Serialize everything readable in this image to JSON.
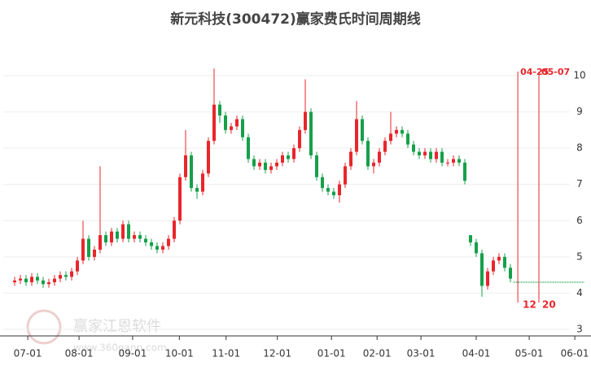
{
  "chart_data": {
    "type": "candlestick",
    "title": "新元科技(300472)赢家费氏时间周期线",
    "watermark": {
      "brand": "赢家江恩软件",
      "url": "www.360gann.com"
    },
    "up_color": "#e8262b",
    "down_color": "#16a04a",
    "xlim": [
      -2,
      100
    ],
    "xticks": [
      {
        "value": 2.3,
        "label": "07-01"
      },
      {
        "value": 11.3,
        "label": "08-01"
      },
      {
        "value": 20.7,
        "label": "09-01"
      },
      {
        "value": 28.9,
        "label": "10-01"
      },
      {
        "value": 37.1,
        "label": "11-01"
      },
      {
        "value": 46.1,
        "label": "12-01"
      },
      {
        "value": 55.6,
        "label": "01-01"
      },
      {
        "value": 63.6,
        "label": "02-01"
      },
      {
        "value": 71.3,
        "label": "03-01"
      },
      {
        "value": 81,
        "label": "04-01"
      },
      {
        "value": 90.3,
        "label": "05-01"
      },
      {
        "value": 98.3,
        "label": "06-01"
      }
    ],
    "ylim": [
      3,
      10
    ],
    "yticks": [
      3,
      4,
      5,
      6,
      7,
      8,
      9,
      10
    ],
    "grid": true,
    "open": [
      4.3,
      4.35,
      4.4,
      4.3,
      4.45,
      4.35,
      4.25,
      4.3,
      4.4,
      4.5,
      4.45,
      4.6,
      4.9,
      5.5,
      5.0,
      5.2,
      5.6,
      5.4,
      5.7,
      5.5,
      5.9,
      5.5,
      5.6,
      5.5,
      5.4,
      5.3,
      5.2,
      5.3,
      5.5,
      6.0,
      7.2,
      7.8,
      6.9,
      6.8,
      7.3,
      8.2,
      9.2,
      8.9,
      8.5,
      8.6,
      8.8,
      8.3,
      7.7,
      7.5,
      7.6,
      7.4,
      7.5,
      7.6,
      7.8,
      7.7,
      8.0,
      8.5,
      9.0,
      7.8,
      7.2,
      6.9,
      6.8,
      6.7,
      7.0,
      7.5,
      7.9,
      8.8,
      8.2,
      7.5,
      7.6,
      7.9,
      8.2,
      8.4,
      8.5,
      8.4,
      8.1,
      7.9,
      7.8,
      7.9,
      7.7,
      7.9,
      7.6,
      7.6,
      7.7,
      7.6,
      5.6,
      5.4,
      5.1,
      4.2,
      4.6,
      4.9,
      5.0,
      4.7
    ],
    "high": [
      4.45,
      4.5,
      4.5,
      4.55,
      4.55,
      4.45,
      4.4,
      4.5,
      4.6,
      4.6,
      4.7,
      5.0,
      6.0,
      5.6,
      5.3,
      7.5,
      5.7,
      5.8,
      5.8,
      6.0,
      6.0,
      5.7,
      5.7,
      5.6,
      5.5,
      5.4,
      5.4,
      5.6,
      6.1,
      7.3,
      8.5,
      7.9,
      7.0,
      7.4,
      8.3,
      10.2,
      9.3,
      9.0,
      8.7,
      8.9,
      8.9,
      8.4,
      7.8,
      7.7,
      7.7,
      7.6,
      7.7,
      7.9,
      7.9,
      8.1,
      8.6,
      9.9,
      9.1,
      7.9,
      7.3,
      7.0,
      6.9,
      7.1,
      7.6,
      8.0,
      9.3,
      8.9,
      8.3,
      7.7,
      8.0,
      8.3,
      9.0,
      8.6,
      8.6,
      8.5,
      8.2,
      8.0,
      8.0,
      8.0,
      8.0,
      8.0,
      7.7,
      7.8,
      7.8,
      7.7,
      5.6,
      5.5,
      5.2,
      4.7,
      5.0,
      5.1,
      5.1,
      4.8
    ],
    "low": [
      4.2,
      4.25,
      4.2,
      4.2,
      4.25,
      4.15,
      4.15,
      4.2,
      4.3,
      4.35,
      4.35,
      4.5,
      4.8,
      4.9,
      4.9,
      5.1,
      5.3,
      5.3,
      5.4,
      5.4,
      5.4,
      5.4,
      5.4,
      5.3,
      5.2,
      5.1,
      5.1,
      5.2,
      5.4,
      5.9,
      7.1,
      6.8,
      6.6,
      6.7,
      7.2,
      8.1,
      8.7,
      8.4,
      8.4,
      8.5,
      8.2,
      7.6,
      7.4,
      7.4,
      7.3,
      7.3,
      7.4,
      7.5,
      7.6,
      7.6,
      7.9,
      8.4,
      7.7,
      7.1,
      6.8,
      6.7,
      6.6,
      6.5,
      6.9,
      7.4,
      7.8,
      8.1,
      7.4,
      7.3,
      7.5,
      7.8,
      8.1,
      8.3,
      8.3,
      8.0,
      7.8,
      7.7,
      7.7,
      7.6,
      7.6,
      7.5,
      7.5,
      7.5,
      7.5,
      7.0,
      5.3,
      5.0,
      3.9,
      4.1,
      4.5,
      4.8,
      4.6,
      4.3
    ],
    "close": [
      4.35,
      4.4,
      4.3,
      4.45,
      4.35,
      4.25,
      4.3,
      4.4,
      4.5,
      4.45,
      4.6,
      4.9,
      5.5,
      5.0,
      5.2,
      5.6,
      5.4,
      5.7,
      5.5,
      5.9,
      5.5,
      5.6,
      5.5,
      5.4,
      5.3,
      5.2,
      5.3,
      5.5,
      6.0,
      7.2,
      7.8,
      6.9,
      6.8,
      7.3,
      8.2,
      9.2,
      8.9,
      8.5,
      8.6,
      8.8,
      8.3,
      7.7,
      7.5,
      7.6,
      7.4,
      7.5,
      7.6,
      7.8,
      7.7,
      8.0,
      8.5,
      9.0,
      7.8,
      7.2,
      6.9,
      6.8,
      6.7,
      7.0,
      7.5,
      7.9,
      8.8,
      8.2,
      7.5,
      7.6,
      7.9,
      8.2,
      8.4,
      8.5,
      8.4,
      8.1,
      7.9,
      7.8,
      7.9,
      7.7,
      7.9,
      7.6,
      7.6,
      7.7,
      7.6,
      7.1,
      5.4,
      5.1,
      4.2,
      4.6,
      4.9,
      5.0,
      4.7,
      4.4
    ],
    "projection": {
      "value": 4.3,
      "x": [
        87.5,
        100
      ],
      "color": "#16a04a"
    },
    "markers": [
      {
        "x": 88.3,
        "label": "04-25",
        "bottom_label": "12"
      },
      {
        "x": 92,
        "label": "05-07",
        "bottom_label": "20"
      }
    ],
    "marker_color": "#e8262b"
  }
}
